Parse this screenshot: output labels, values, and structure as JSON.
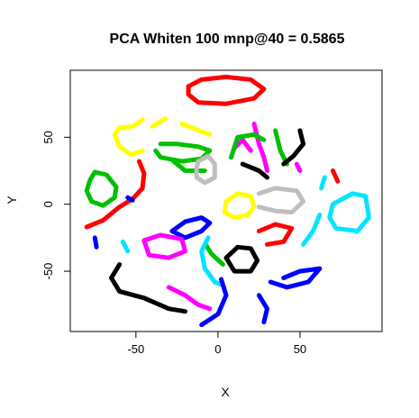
{
  "chart_data": {
    "type": "scatter",
    "title": "PCA Whiten 100 mnp@40 = 0.5865",
    "xlabel": "X",
    "ylabel": "Y",
    "xlim": [
      -90,
      100
    ],
    "ylim": [
      -95,
      100
    ],
    "xticks": [
      -50,
      0,
      50
    ],
    "yticks": [
      -50,
      0,
      50
    ],
    "grid": false,
    "legend": "none",
    "colors": {
      "black": "#000000",
      "red": "#ff0000",
      "green": "#00c000",
      "blue": "#0000ff",
      "cyan": "#00e5ff",
      "magenta": "#ff00ff",
      "yellow": "#ffff00",
      "gray": "#bebebe"
    },
    "clusters": [
      {
        "name": "red-top-ring",
        "color": "red",
        "closed": true,
        "points": [
          [
            -18,
            88
          ],
          [
            -10,
            93
          ],
          [
            5,
            95
          ],
          [
            20,
            93
          ],
          [
            28,
            86
          ],
          [
            22,
            79
          ],
          [
            5,
            75
          ],
          [
            -12,
            76
          ],
          [
            -18,
            82
          ]
        ]
      },
      {
        "name": "yellow-arc",
        "color": "yellow",
        "closed": false,
        "points": [
          [
            -46,
            63
          ],
          [
            -52,
            58
          ],
          [
            -60,
            57
          ],
          [
            -63,
            52
          ],
          [
            -60,
            43
          ],
          [
            -53,
            37
          ],
          [
            -46,
            40
          ]
        ]
      },
      {
        "name": "yellow-dash-1",
        "color": "yellow",
        "closed": false,
        "points": [
          [
            -40,
            58
          ],
          [
            -32,
            64
          ]
        ]
      },
      {
        "name": "yellow-dash-2",
        "color": "yellow",
        "closed": false,
        "points": [
          [
            -22,
            60
          ],
          [
            -5,
            52
          ]
        ]
      },
      {
        "name": "red-left-arc",
        "color": "red",
        "closed": false,
        "points": [
          [
            -48,
            32
          ],
          [
            -45,
            23
          ],
          [
            -46,
            12
          ],
          [
            -52,
            4
          ],
          [
            -60,
            -2
          ],
          [
            -70,
            -12
          ],
          [
            -80,
            -17
          ]
        ]
      },
      {
        "name": "green-left-ring",
        "color": "green",
        "closed": true,
        "points": [
          [
            -78,
            18
          ],
          [
            -75,
            24
          ],
          [
            -68,
            22
          ],
          [
            -62,
            13
          ],
          [
            -63,
            5
          ],
          [
            -70,
            -1
          ],
          [
            -77,
            2
          ],
          [
            -80,
            10
          ]
        ]
      },
      {
        "name": "green-center-left",
        "color": "green",
        "closed": false,
        "points": [
          [
            -35,
            45
          ],
          [
            -25,
            45
          ],
          [
            -12,
            43
          ],
          [
            -5,
            40
          ],
          [
            -10,
            34
          ],
          [
            -22,
            32
          ],
          [
            -35,
            35
          ],
          [
            -38,
            40
          ]
        ]
      },
      {
        "name": "green-center-left-2",
        "color": "green",
        "closed": false,
        "points": [
          [
            -27,
            32
          ],
          [
            -20,
            25
          ],
          [
            -8,
            25
          ]
        ]
      },
      {
        "name": "gray-center",
        "color": "gray",
        "closed": true,
        "points": [
          [
            -12,
            32
          ],
          [
            -6,
            36
          ],
          [
            -2,
            30
          ],
          [
            -2,
            20
          ],
          [
            -8,
            16
          ],
          [
            -13,
            20
          ],
          [
            -13,
            27
          ]
        ]
      },
      {
        "name": "gray-right",
        "color": "gray",
        "closed": false,
        "points": [
          [
            25,
            8
          ],
          [
            35,
            12
          ],
          [
            48,
            10
          ],
          [
            52,
            2
          ],
          [
            45,
            -6
          ],
          [
            35,
            -5
          ],
          [
            25,
            -2
          ]
        ]
      },
      {
        "name": "yellow-center",
        "color": "yellow",
        "closed": true,
        "points": [
          [
            5,
            2
          ],
          [
            12,
            8
          ],
          [
            20,
            6
          ],
          [
            22,
            -2
          ],
          [
            18,
            -8
          ],
          [
            10,
            -10
          ],
          [
            4,
            -6
          ]
        ]
      },
      {
        "name": "blue-left-ring",
        "color": "blue",
        "closed": true,
        "points": [
          [
            -28,
            -20
          ],
          [
            -20,
            -13
          ],
          [
            -10,
            -10
          ],
          [
            -5,
            -14
          ],
          [
            -10,
            -20
          ],
          [
            -20,
            -25
          ]
        ]
      },
      {
        "name": "blue-dot",
        "color": "blue",
        "closed": false,
        "points": [
          [
            -55,
            5
          ],
          [
            -52,
            3
          ]
        ]
      },
      {
        "name": "blue-left-small",
        "color": "blue",
        "closed": false,
        "points": [
          [
            -75,
            -25
          ],
          [
            -74,
            -32
          ]
        ]
      },
      {
        "name": "magenta-rings",
        "color": "magenta",
        "closed": true,
        "points": [
          [
            -45,
            -27
          ],
          [
            -35,
            -23
          ],
          [
            -22,
            -26
          ],
          [
            -20,
            -35
          ],
          [
            -30,
            -40
          ],
          [
            -42,
            -38
          ]
        ]
      },
      {
        "name": "magenta-right",
        "color": "magenta",
        "closed": false,
        "points": [
          [
            22,
            60
          ],
          [
            25,
            45
          ],
          [
            28,
            35
          ],
          [
            30,
            25
          ]
        ]
      },
      {
        "name": "magenta-center",
        "color": "magenta",
        "closed": false,
        "points": [
          [
            10,
            42
          ],
          [
            15,
            48
          ],
          [
            20,
            40
          ]
        ]
      },
      {
        "name": "magenta-bottom",
        "color": "magenta",
        "closed": false,
        "points": [
          [
            -30,
            -62
          ],
          [
            -20,
            -68
          ],
          [
            -12,
            -75
          ],
          [
            -5,
            -78
          ]
        ]
      },
      {
        "name": "magenta-small",
        "color": "magenta",
        "closed": false,
        "points": [
          [
            48,
            30
          ],
          [
            50,
            25
          ]
        ]
      },
      {
        "name": "green-center-right",
        "color": "green",
        "closed": false,
        "points": [
          [
            8,
            35
          ],
          [
            12,
            50
          ],
          [
            22,
            52
          ],
          [
            28,
            48
          ]
        ]
      },
      {
        "name": "green-right",
        "color": "green",
        "closed": false,
        "points": [
          [
            35,
            55
          ],
          [
            38,
            40
          ],
          [
            42,
            30
          ]
        ]
      },
      {
        "name": "green-right-2",
        "color": "green",
        "closed": false,
        "points": [
          [
            -7,
            -31
          ],
          [
            -4,
            -37
          ],
          [
            3,
            -45
          ]
        ]
      },
      {
        "name": "black-center-ring",
        "color": "black",
        "closed": true,
        "points": [
          [
            5,
            -40
          ],
          [
            12,
            -32
          ],
          [
            20,
            -33
          ],
          [
            24,
            -42
          ],
          [
            20,
            -50
          ],
          [
            10,
            -50
          ]
        ]
      },
      {
        "name": "black-bottom-left",
        "color": "black",
        "closed": false,
        "points": [
          [
            -60,
            -45
          ],
          [
            -65,
            -55
          ],
          [
            -60,
            -65
          ],
          [
            -45,
            -70
          ],
          [
            -30,
            -78
          ],
          [
            -20,
            -80
          ]
        ]
      },
      {
        "name": "black-top-right",
        "color": "black",
        "closed": false,
        "points": [
          [
            50,
            55
          ],
          [
            52,
            45
          ],
          [
            46,
            36
          ],
          [
            40,
            30
          ]
        ]
      },
      {
        "name": "black-center-curves",
        "color": "black",
        "closed": false,
        "points": [
          [
            15,
            30
          ],
          [
            25,
            25
          ],
          [
            30,
            20
          ]
        ]
      },
      {
        "name": "cyan-right-ring",
        "color": "cyan",
        "closed": true,
        "points": [
          [
            70,
            0
          ],
          [
            82,
            8
          ],
          [
            90,
            6
          ],
          [
            92,
            -10
          ],
          [
            85,
            -20
          ],
          [
            72,
            -18
          ],
          [
            68,
            -10
          ]
        ]
      },
      {
        "name": "cyan-arc",
        "color": "cyan",
        "closed": false,
        "points": [
          [
            -6,
            -25
          ],
          [
            -10,
            -35
          ],
          [
            -8,
            -48
          ],
          [
            -2,
            -58
          ],
          [
            2,
            -60
          ]
        ]
      },
      {
        "name": "cyan-right",
        "color": "cyan",
        "closed": false,
        "points": [
          [
            62,
            -8
          ],
          [
            58,
            -20
          ],
          [
            52,
            -30
          ]
        ]
      },
      {
        "name": "cyan-bottom",
        "color": "cyan",
        "closed": false,
        "points": [
          [
            -58,
            -28
          ],
          [
            -55,
            -35
          ]
        ]
      },
      {
        "name": "cyan-top-right",
        "color": "cyan",
        "closed": false,
        "points": [
          [
            65,
            20
          ],
          [
            63,
            12
          ]
        ]
      },
      {
        "name": "blue-bottom-arc",
        "color": "blue",
        "closed": false,
        "points": [
          [
            40,
            -55
          ],
          [
            50,
            -50
          ],
          [
            62,
            -48
          ],
          [
            55,
            -58
          ],
          [
            42,
            -62
          ],
          [
            32,
            -58
          ]
        ]
      },
      {
        "name": "blue-bottom",
        "color": "blue",
        "closed": false,
        "points": [
          [
            25,
            -68
          ],
          [
            30,
            -78
          ],
          [
            28,
            -88
          ]
        ]
      },
      {
        "name": "blue-bottom-2",
        "color": "blue",
        "closed": false,
        "points": [
          [
            -10,
            -90
          ],
          [
            0,
            -82
          ],
          [
            5,
            -68
          ],
          [
            2,
            -56
          ]
        ]
      },
      {
        "name": "red-right",
        "color": "red",
        "closed": false,
        "points": [
          [
            25,
            -20
          ],
          [
            35,
            -15
          ],
          [
            45,
            -18
          ],
          [
            40,
            -28
          ],
          [
            30,
            -30
          ]
        ]
      },
      {
        "name": "red-right-dash",
        "color": "red",
        "closed": false,
        "points": [
          [
            70,
            25
          ],
          [
            73,
            17
          ]
        ]
      }
    ]
  }
}
